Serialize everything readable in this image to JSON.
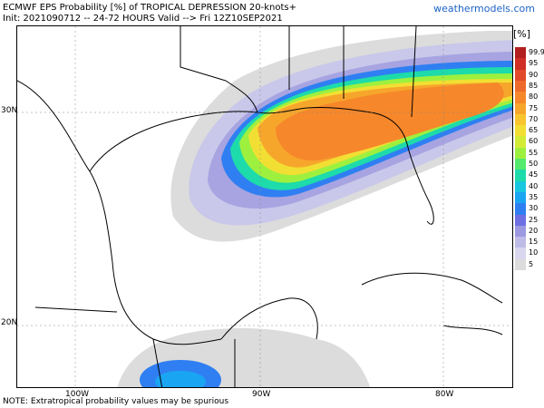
{
  "header": {
    "title_line1": "ECMWF EPS Probability [%] of TROPICAL DEPRESSION 20-knots+",
    "title_line2": "Init: 2021090712 -- 24-72 HOURS Valid --> Fri 12Z10SEP2021",
    "brand": "weathermodels.com"
  },
  "axes": {
    "lat_labels": [
      "30N",
      "20N"
    ],
    "lon_labels": [
      "100W",
      "90W",
      "80W"
    ]
  },
  "footer": {
    "note": "NOTE: Extratropical probability values may be spurious"
  },
  "legend": {
    "title": "[%]",
    "levels": [
      "99.9",
      "95",
      "90",
      "85",
      "80",
      "75",
      "70",
      "65",
      "60",
      "55",
      "50",
      "45",
      "40",
      "35",
      "30",
      "25",
      "20",
      "15",
      "10",
      "5"
    ],
    "colors": [
      "#b11f1f",
      "#d02f25",
      "#e04a2a",
      "#ee6a2c",
      "#f6872a",
      "#f7a62c",
      "#f8c52e",
      "#f2df33",
      "#d2ec36",
      "#9ef03f",
      "#53ea6d",
      "#1ddbaa",
      "#18c6e0",
      "#1aa5f2",
      "#2f7ff2",
      "#6d6fe3",
      "#9c99e0",
      "#bebce7",
      "#d8d7ee",
      "#dcdcdc"
    ]
  }
}
